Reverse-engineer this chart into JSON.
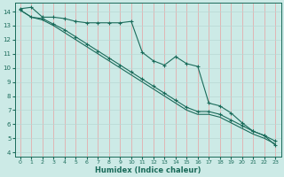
{
  "xlabel": "Humidex (Indice chaleur)",
  "bg_color": "#cceae6",
  "grid_color_v": "#e8a0a0",
  "grid_color_h": "#b8d8d4",
  "line_color": "#1a6b5a",
  "xlim": [
    -0.5,
    23.5
  ],
  "ylim": [
    3.7,
    14.6
  ],
  "xticks": [
    0,
    1,
    2,
    3,
    4,
    5,
    6,
    7,
    8,
    9,
    10,
    11,
    12,
    13,
    14,
    15,
    16,
    17,
    18,
    19,
    20,
    21,
    22,
    23
  ],
  "yticks": [
    4,
    5,
    6,
    7,
    8,
    9,
    10,
    11,
    12,
    13,
    14
  ],
  "line_jagged_x": [
    0,
    1,
    2,
    3,
    4,
    5,
    6,
    7,
    8,
    9,
    10,
    11,
    12,
    13,
    14,
    15,
    16,
    17,
    18,
    19,
    20,
    21,
    22,
    23
  ],
  "line_jagged_y": [
    14.2,
    14.3,
    13.6,
    13.6,
    13.5,
    13.3,
    13.2,
    13.2,
    13.2,
    13.2,
    13.3,
    11.1,
    10.5,
    10.2,
    10.8,
    10.3,
    10.1,
    7.5,
    7.3,
    6.8,
    6.1,
    5.5,
    5.2,
    4.5
  ],
  "line_diag1_x": [
    0,
    1,
    2,
    3,
    4,
    5,
    6,
    7,
    8,
    9,
    10,
    11,
    12,
    13,
    14,
    15,
    16,
    17,
    18,
    19,
    20,
    21,
    22,
    23
  ],
  "line_diag1_y": [
    14.1,
    13.6,
    13.5,
    13.1,
    12.7,
    12.2,
    11.7,
    11.2,
    10.7,
    10.2,
    9.7,
    9.2,
    8.7,
    8.2,
    7.7,
    7.2,
    6.9,
    6.9,
    6.7,
    6.3,
    5.9,
    5.5,
    5.2,
    4.8
  ],
  "line_diag2_x": [
    0,
    1,
    2,
    3,
    4,
    5,
    6,
    7,
    8,
    9,
    10,
    11,
    12,
    13,
    14,
    15,
    16,
    17,
    18,
    19,
    20,
    21,
    22,
    23
  ],
  "line_diag2_y": [
    14.1,
    13.6,
    13.4,
    13.0,
    12.5,
    12.0,
    11.5,
    11.0,
    10.5,
    10.0,
    9.5,
    9.0,
    8.5,
    8.0,
    7.5,
    7.0,
    6.7,
    6.7,
    6.5,
    6.1,
    5.7,
    5.3,
    5.0,
    4.6
  ]
}
